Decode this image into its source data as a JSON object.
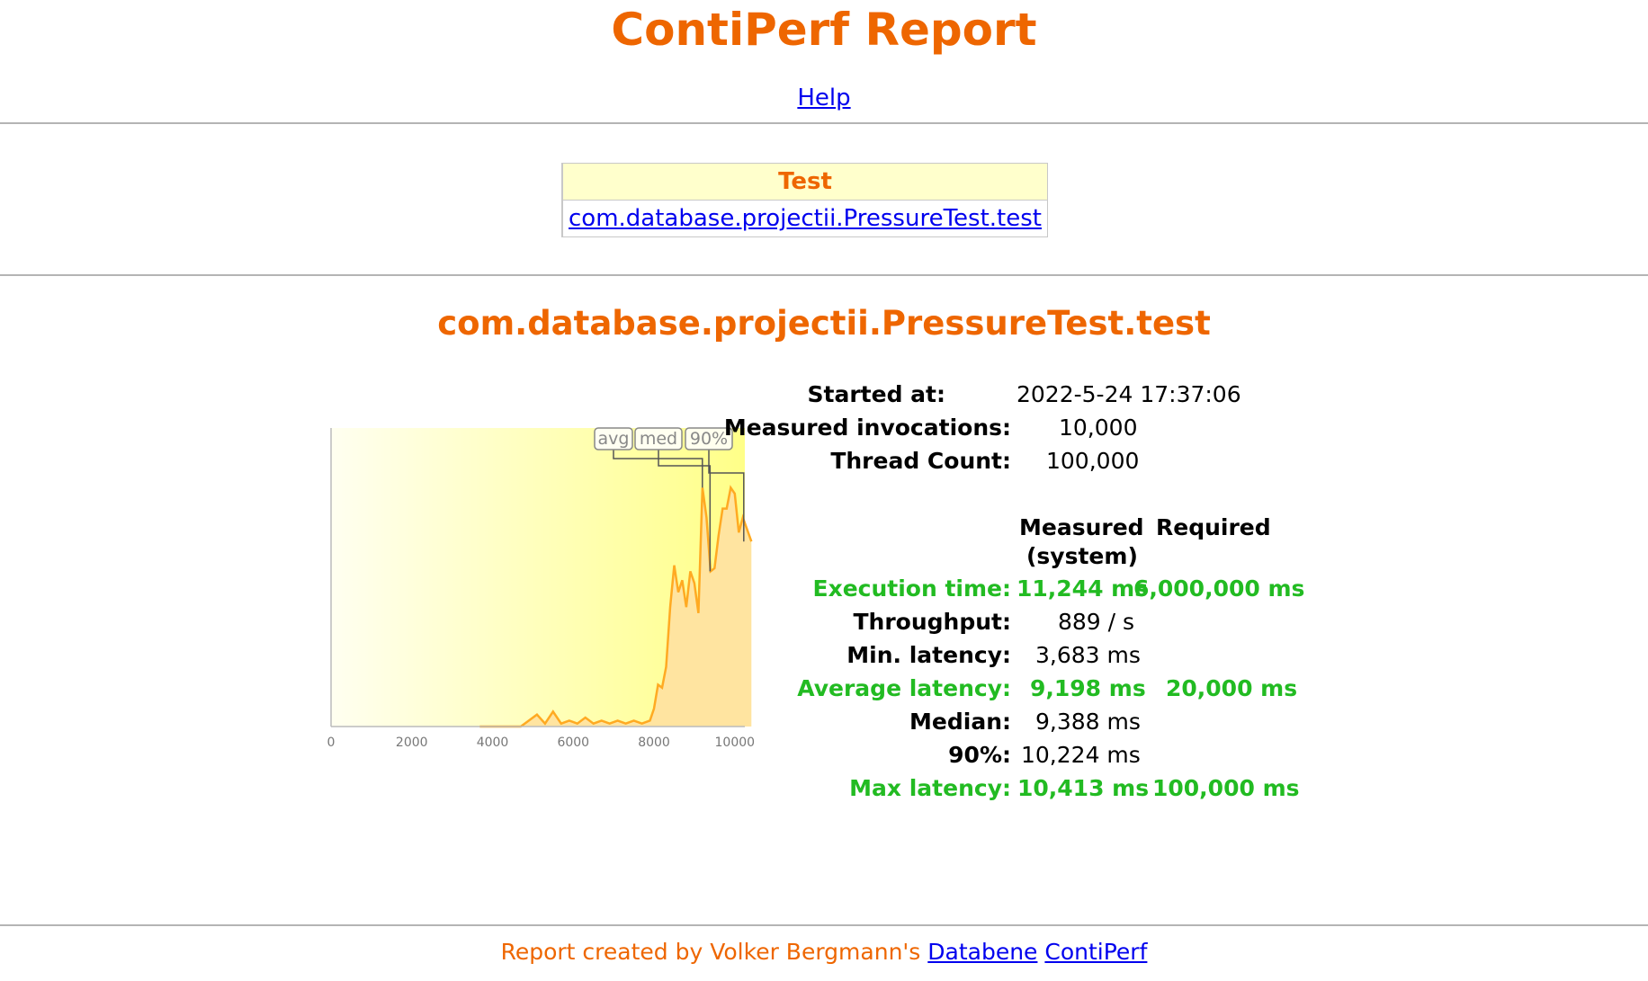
{
  "header": {
    "title": "ContiPerf Report",
    "help_link": "Help"
  },
  "tests_table": {
    "header": "Test",
    "rows": [
      {
        "name": "com.database.projectii.PressureTest.test",
        "status_color": "#00bb00"
      }
    ]
  },
  "test": {
    "title": "com.database.projectii.PressureTest.test",
    "started_label": "Started at:",
    "started_value": "2022-5-24 17:37:06",
    "invocations_label": "Measured invocations:",
    "invocations_value": "10,000",
    "threads_label": "Thread Count:",
    "threads_value": "100,000",
    "col_measured_1": "Measured",
    "col_measured_2": "(system)",
    "col_required": "Required",
    "exec_label": "Execution time:",
    "exec_measured": "11,244 ms",
    "exec_required": "6,000,000 ms",
    "throughput_label": "Throughput:",
    "throughput_value": "889 / s",
    "min_label": "Min. latency:",
    "min_value": "3,683 ms",
    "avg_label": "Average latency:",
    "avg_measured": "9,198 ms",
    "avg_required": "20,000 ms",
    "median_label": "Median:",
    "median_value": "9,388 ms",
    "p90_label": "90%:",
    "p90_value": "10,224 ms",
    "max_label": "Max latency:",
    "max_measured": "10,413 ms",
    "max_required": "100,000 ms"
  },
  "chart_data": {
    "type": "area",
    "x_ticks": [
      "0",
      "2000",
      "4000",
      "6000",
      "8000",
      "10000"
    ],
    "xlim": [
      0,
      10250
    ],
    "markers": [
      {
        "label": "avg",
        "x": 9198
      },
      {
        "label": "med",
        "x": 9388
      },
      {
        "label": "90%",
        "x": 10224
      }
    ],
    "x": [
      3683,
      3900,
      4100,
      4300,
      4500,
      4700,
      4900,
      5100,
      5300,
      5500,
      5700,
      5900,
      6100,
      6300,
      6500,
      6700,
      6900,
      7100,
      7300,
      7500,
      7700,
      7900,
      8000,
      8100,
      8200,
      8300,
      8400,
      8500,
      8600,
      8700,
      8800,
      8900,
      9000,
      9100,
      9200,
      9300,
      9400,
      9500,
      9600,
      9700,
      9800,
      9900,
      10000,
      10100,
      10200,
      10413
    ],
    "y": [
      0,
      0,
      0,
      0,
      0,
      0,
      2,
      4,
      1,
      5,
      1,
      2,
      1,
      3,
      1,
      2,
      1,
      2,
      1,
      2,
      1,
      2,
      6,
      14,
      13,
      20,
      40,
      54,
      45,
      49,
      40,
      52,
      48,
      38,
      80,
      70,
      52,
      53,
      64,
      73,
      73,
      80,
      78,
      65,
      70,
      62
    ],
    "ylim": [
      0,
      100
    ],
    "colors": {
      "line": "#ffaa22",
      "fill": "#ffe4a0",
      "bg_left": "#fffff0",
      "bg_right": "#ffff88",
      "marker": "#555555"
    }
  },
  "footer": {
    "text": "Report created by Volker Bergmann's",
    "link1": "Databene",
    "link2": "ContiPerf"
  }
}
